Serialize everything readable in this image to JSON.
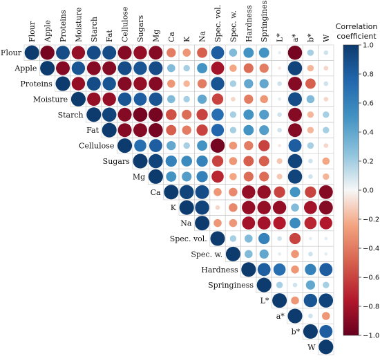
{
  "chart_data": {
    "type": "heatmap",
    "variables": [
      "Flour",
      "Apple",
      "Proteins",
      "Moisture",
      "Starch",
      "Fat",
      "Cellulose",
      "Sugars",
      "Mg",
      "Ca",
      "K",
      "Na",
      "Spec. vol.",
      "Spec. w.",
      "Hardness",
      "Springiness",
      "L*",
      "a*",
      "b*",
      "W"
    ],
    "matrix_upper": [
      [
        1.0,
        -0.95,
        0.9,
        -0.85,
        0.9,
        0.9,
        -0.9,
        -0.85,
        -0.9,
        -0.4,
        -0.3,
        -0.5,
        0.8,
        0.3,
        0.5,
        0.5,
        0.05,
        -0.95,
        0.2,
        0.1
      ],
      [
        1.0,
        -0.9,
        0.85,
        -0.9,
        -0.9,
        0.9,
        0.85,
        0.9,
        0.3,
        0.2,
        0.5,
        -0.8,
        -0.25,
        -0.45,
        -0.4,
        -0.05,
        0.95,
        -0.2,
        -0.1
      ],
      [
        1.0,
        -0.85,
        0.9,
        0.85,
        -0.9,
        -0.85,
        -0.9,
        -0.3,
        -0.2,
        -0.4,
        0.85,
        0.2,
        0.4,
        0.4,
        0.1,
        -0.9,
        -0.5,
        0.1
      ],
      [
        1.0,
        -0.85,
        -0.85,
        0.85,
        0.8,
        0.85,
        0.3,
        0.2,
        0.4,
        -0.6,
        -0.1,
        -0.4,
        -0.3,
        0.05,
        0.9,
        0.3,
        -0.1
      ],
      [
        1.0,
        0.95,
        -0.9,
        -0.95,
        -0.95,
        -0.55,
        -0.45,
        -0.6,
        0.7,
        0.2,
        0.5,
        0.45,
        0.1,
        -0.9,
        -0.2,
        0.2
      ],
      [
        1.0,
        -0.9,
        -0.9,
        -0.95,
        -0.5,
        -0.4,
        -0.6,
        0.75,
        0.2,
        0.5,
        0.45,
        0.1,
        -0.9,
        -0.2,
        0.2
      ],
      [
        1.0,
        0.7,
        0.8,
        0.4,
        0.2,
        0.5,
        -0.95,
        -0.3,
        -0.4,
        -0.6,
        -0.05,
        0.8,
        0.2,
        -0.1
      ],
      [
        1.0,
        0.95,
        0.6,
        0.55,
        0.6,
        -0.6,
        -0.3,
        -0.5,
        -0.5,
        -0.15,
        0.95,
        0.1,
        -0.25
      ],
      [
        1.0,
        0.5,
        0.45,
        0.6,
        -0.7,
        -0.25,
        -0.45,
        -0.45,
        -0.15,
        0.95,
        0.1,
        -0.2
      ],
      [
        1.0,
        0.95,
        0.9,
        -0.3,
        -0.35,
        -0.85,
        -0.85,
        -0.6,
        0.5,
        -0.6,
        -0.9
      ],
      [
        1.0,
        0.95,
        -0.1,
        -0.35,
        -0.85,
        -0.85,
        -0.85,
        0.3,
        -0.8,
        -0.9
      ],
      [
        1.0,
        -0.3,
        -0.3,
        -0.8,
        -0.8,
        -0.75,
        0.55,
        -0.7,
        -0.75
      ],
      [
        1.0,
        0.2,
        0.3,
        0.6,
        0.1,
        -0.6,
        0.05,
        0.05
      ],
      [
        1.0,
        0.3,
        0.4,
        0.05,
        -0.3,
        0.1,
        0.05
      ],
      [
        1.0,
        0.8,
        0.7,
        -0.3,
        0.6,
        0.8
      ],
      [
        1.0,
        0.2,
        0.1,
        0.4,
        0.2
      ],
      [
        1.0,
        -0.3,
        0.85,
        0.95
      ],
      [
        1.0,
        0.1,
        -0.3
      ],
      [
        1.0,
        0.8
      ],
      [
        1.0
      ]
    ],
    "colorbar": {
      "title": "Correlation coefficient",
      "ticks": [
        1.0,
        0.8,
        0.6,
        0.4,
        0.2,
        0.0,
        -0.2,
        -0.4,
        -0.6,
        -0.8,
        -1.0
      ],
      "tick_labels": [
        "1.0",
        "0.8",
        "0.6",
        "0.4",
        "0.2",
        "0.0",
        "−0.2",
        "−0.4",
        "−0.6",
        "−0.8",
        "−1.0"
      ],
      "range": [
        -1.0,
        1.0
      ]
    },
    "colors": {
      "positive": "#0d3b6e",
      "neutral": "#f7f7f7",
      "negative": "#7a0a1f",
      "grid": "#c8c8c8"
    }
  }
}
